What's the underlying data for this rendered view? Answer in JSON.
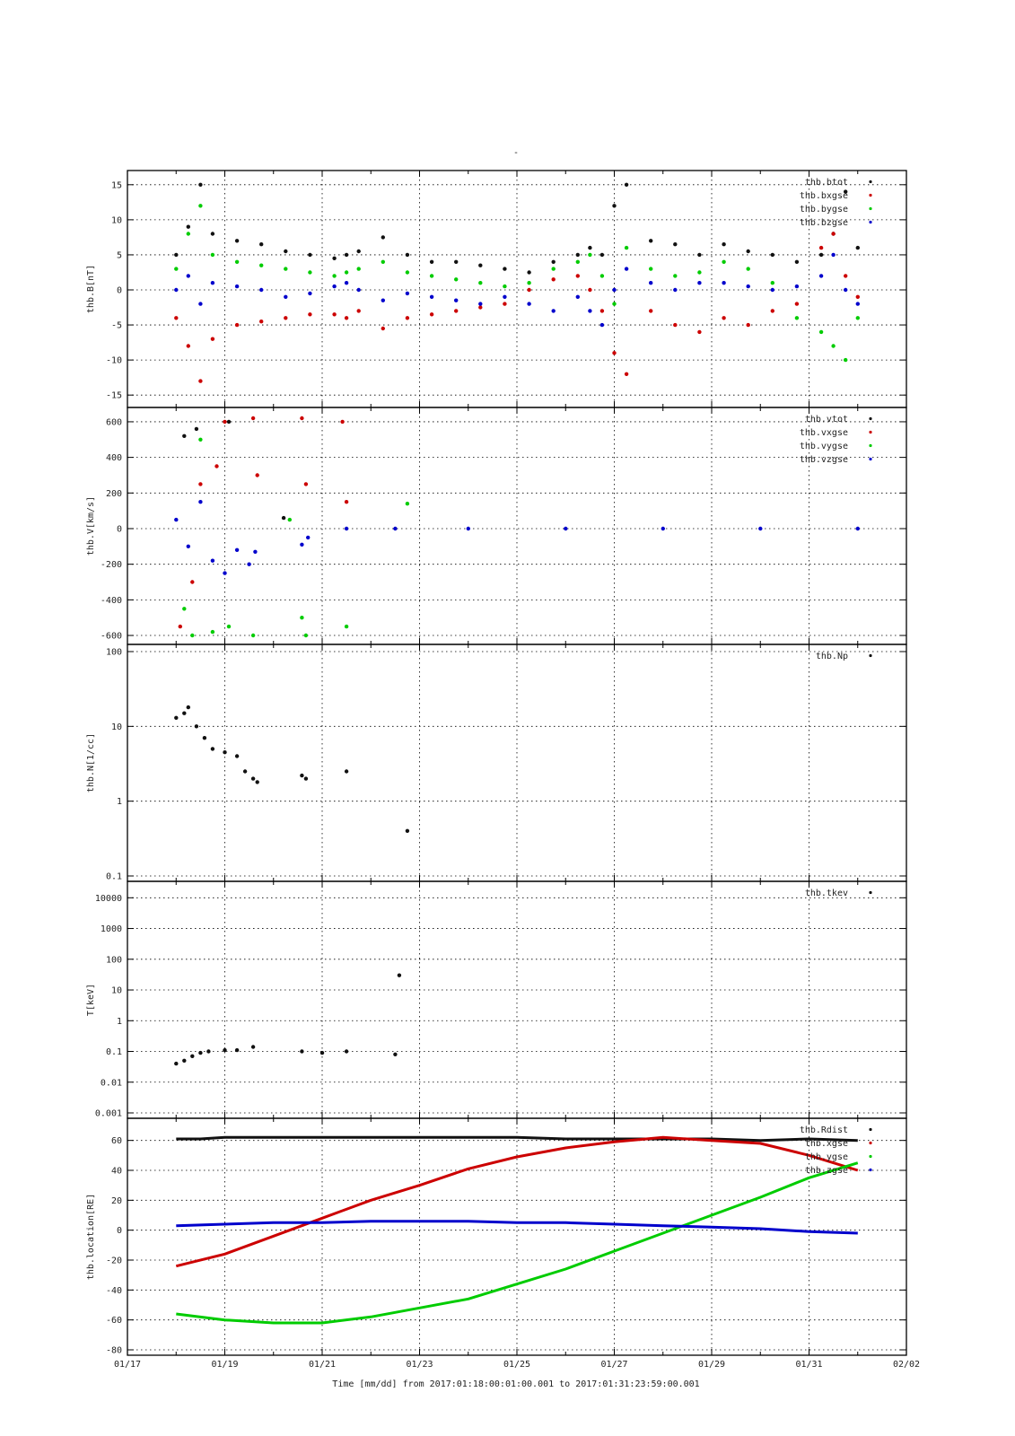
{
  "figure": {
    "title": "-",
    "xlabel": "Time [mm/dd]  from 2017:01:18:00:01:00.001  to  2017:01:31:23:59:00.001"
  },
  "colors": {
    "black": "#111111",
    "red": "#cc0000",
    "green": "#00cc00",
    "blue": "#0000cc"
  },
  "chart_data": [
    {
      "type": "scatter",
      "ylabel": "thb.B[nT]",
      "x_range_days": [
        "2017-01-17",
        "2017-02-02"
      ],
      "x_tick_labels": [
        "01/17",
        "01/19",
        "01/21",
        "01/23",
        "01/25",
        "01/27",
        "01/29",
        "01/31",
        "02/02"
      ],
      "ylim": [
        -16,
        16
      ],
      "y_ticks": [
        -15,
        -10,
        -5,
        0,
        5,
        10,
        15
      ],
      "y_tick_labels": [
        "-15",
        "-10",
        "-5",
        "0",
        "5",
        "10",
        "15"
      ],
      "grid": true,
      "legend_position": "top-right",
      "series": [
        {
          "name": "thb.btot",
          "color": "black",
          "x": [
            "2017-01-18 00:00",
            "2017-01-18 06:00",
            "2017-01-18 12:00",
            "2017-01-18 18:00",
            "2017-01-19 06:00",
            "2017-01-19 18:00",
            "2017-01-20 06:00",
            "2017-01-20 18:00",
            "2017-01-21 06:00",
            "2017-01-21 12:00",
            "2017-01-21 18:00",
            "2017-01-22 06:00",
            "2017-01-22 18:00",
            "2017-01-23 06:00",
            "2017-01-23 18:00",
            "2017-01-24 06:00",
            "2017-01-24 18:00",
            "2017-01-25 06:00",
            "2017-01-25 18:00",
            "2017-01-26 06:00",
            "2017-01-26 12:00",
            "2017-01-26 18:00",
            "2017-01-27 00:00",
            "2017-01-27 06:00",
            "2017-01-27 18:00",
            "2017-01-28 06:00",
            "2017-01-28 18:00",
            "2017-01-29 06:00",
            "2017-01-29 18:00",
            "2017-01-30 06:00",
            "2017-01-30 18:00",
            "2017-01-31 06:00",
            "2017-01-31 12:00",
            "2017-01-31 18:00",
            "2017-02-01 00:00"
          ],
          "y": [
            5,
            9,
            15,
            8,
            7,
            6.5,
            5.5,
            5,
            4.5,
            5,
            5.5,
            7.5,
            5,
            4,
            4,
            3.5,
            3,
            2.5,
            4,
            5,
            6,
            5,
            12,
            15,
            7,
            6.5,
            5,
            6.5,
            5.5,
            5,
            4,
            5,
            8,
            14,
            6
          ]
        },
        {
          "name": "thb.bxgse",
          "color": "red",
          "x": [
            "2017-01-18 00:00",
            "2017-01-18 06:00",
            "2017-01-18 12:00",
            "2017-01-18 18:00",
            "2017-01-19 06:00",
            "2017-01-19 18:00",
            "2017-01-20 06:00",
            "2017-01-20 18:00",
            "2017-01-21 06:00",
            "2017-01-21 12:00",
            "2017-01-21 18:00",
            "2017-01-22 06:00",
            "2017-01-22 18:00",
            "2017-01-23 06:00",
            "2017-01-23 18:00",
            "2017-01-24 06:00",
            "2017-01-24 18:00",
            "2017-01-25 06:00",
            "2017-01-25 18:00",
            "2017-01-26 06:00",
            "2017-01-26 12:00",
            "2017-01-26 18:00",
            "2017-01-27 00:00",
            "2017-01-27 06:00",
            "2017-01-27 18:00",
            "2017-01-28 06:00",
            "2017-01-28 18:00",
            "2017-01-29 06:00",
            "2017-01-29 18:00",
            "2017-01-30 06:00",
            "2017-01-30 18:00",
            "2017-01-31 06:00",
            "2017-01-31 12:00",
            "2017-01-31 18:00",
            "2017-02-01 00:00"
          ],
          "y": [
            -4,
            -8,
            -13,
            -7,
            -5,
            -4.5,
            -4,
            -3.5,
            -3.5,
            -4,
            -3,
            -5.5,
            -4,
            -3.5,
            -3,
            -2.5,
            -2,
            0,
            1.5,
            2,
            0,
            -3,
            -9,
            -12,
            -3,
            -5,
            -6,
            -4,
            -5,
            -3,
            -2,
            6,
            8,
            2,
            -1
          ]
        },
        {
          "name": "thb.bygse",
          "color": "green",
          "x": [
            "2017-01-18 00:00",
            "2017-01-18 06:00",
            "2017-01-18 12:00",
            "2017-01-18 18:00",
            "2017-01-19 06:00",
            "2017-01-19 18:00",
            "2017-01-20 06:00",
            "2017-01-20 18:00",
            "2017-01-21 06:00",
            "2017-01-21 12:00",
            "2017-01-21 18:00",
            "2017-01-22 06:00",
            "2017-01-22 18:00",
            "2017-01-23 06:00",
            "2017-01-23 18:00",
            "2017-01-24 06:00",
            "2017-01-24 18:00",
            "2017-01-25 06:00",
            "2017-01-25 18:00",
            "2017-01-26 06:00",
            "2017-01-26 12:00",
            "2017-01-26 18:00",
            "2017-01-27 00:00",
            "2017-01-27 06:00",
            "2017-01-27 18:00",
            "2017-01-28 06:00",
            "2017-01-28 18:00",
            "2017-01-29 06:00",
            "2017-01-29 18:00",
            "2017-01-30 06:00",
            "2017-01-30 18:00",
            "2017-01-31 06:00",
            "2017-01-31 12:00",
            "2017-01-31 18:00",
            "2017-02-01 00:00"
          ],
          "y": [
            3,
            8,
            12,
            5,
            4,
            3.5,
            3,
            2.5,
            2,
            2.5,
            3,
            4,
            2.5,
            2,
            1.5,
            1,
            0.5,
            1,
            3,
            4,
            5,
            2,
            -2,
            6,
            3,
            2,
            2.5,
            4,
            3,
            1,
            -4,
            -6,
            -8,
            -10,
            -4
          ]
        },
        {
          "name": "thb.bzgse",
          "color": "blue",
          "x": [
            "2017-01-18 00:00",
            "2017-01-18 06:00",
            "2017-01-18 12:00",
            "2017-01-18 18:00",
            "2017-01-19 06:00",
            "2017-01-19 18:00",
            "2017-01-20 06:00",
            "2017-01-20 18:00",
            "2017-01-21 06:00",
            "2017-01-21 12:00",
            "2017-01-21 18:00",
            "2017-01-22 06:00",
            "2017-01-22 18:00",
            "2017-01-23 06:00",
            "2017-01-23 18:00",
            "2017-01-24 06:00",
            "2017-01-24 18:00",
            "2017-01-25 06:00",
            "2017-01-25 18:00",
            "2017-01-26 06:00",
            "2017-01-26 12:00",
            "2017-01-26 18:00",
            "2017-01-27 00:00",
            "2017-01-27 06:00",
            "2017-01-27 18:00",
            "2017-01-28 06:00",
            "2017-01-28 18:00",
            "2017-01-29 06:00",
            "2017-01-29 18:00",
            "2017-01-30 06:00",
            "2017-01-30 18:00",
            "2017-01-31 06:00",
            "2017-01-31 12:00",
            "2017-01-31 18:00",
            "2017-02-01 00:00"
          ],
          "y": [
            0,
            2,
            -2,
            1,
            0.5,
            0,
            -1,
            -0.5,
            0.5,
            1,
            0,
            -1.5,
            -0.5,
            -1,
            -1.5,
            -2,
            -1,
            -2,
            -3,
            -1,
            -3,
            -5,
            0,
            3,
            1,
            0,
            1,
            1,
            0.5,
            0,
            0.5,
            2,
            5,
            0,
            -2
          ]
        }
      ]
    },
    {
      "type": "scatter",
      "ylabel": "thb.V[km/s]",
      "x_range_days": [
        "2017-01-17",
        "2017-02-02"
      ],
      "ylim": [
        -620,
        640
      ],
      "y_ticks": [
        -600,
        -400,
        -200,
        0,
        200,
        400,
        600
      ],
      "y_tick_labels": [
        "-600",
        "-400",
        "-200",
        "0",
        "200",
        "400",
        "600"
      ],
      "grid": true,
      "legend_position": "top-right",
      "series": [
        {
          "name": "thb.vtot",
          "color": "black",
          "x": [
            "2017-01-18 04:00",
            "2017-01-18 10:00",
            "2017-01-19 02:00",
            "2017-01-20 05:00"
          ],
          "y": [
            520,
            560,
            600,
            60
          ]
        },
        {
          "name": "thb.vxgse",
          "color": "red",
          "x": [
            "2017-01-18 02:00",
            "2017-01-18 08:00",
            "2017-01-18 12:00",
            "2017-01-18 20:00",
            "2017-01-19 00:00",
            "2017-01-19 14:00",
            "2017-01-19 16:00",
            "2017-01-20 14:00",
            "2017-01-20 16:00",
            "2017-01-21 10:00",
            "2017-01-21 12:00"
          ],
          "y": [
            -550,
            -300,
            250,
            350,
            600,
            620,
            300,
            620,
            250,
            600,
            150
          ]
        },
        {
          "name": "thb.vygse",
          "color": "green",
          "x": [
            "2017-01-18 04:00",
            "2017-01-18 08:00",
            "2017-01-18 12:00",
            "2017-01-18 18:00",
            "2017-01-19 02:00",
            "2017-01-19 14:00",
            "2017-01-20 08:00",
            "2017-01-20 14:00",
            "2017-01-20 16:00",
            "2017-01-21 12:00",
            "2017-01-22 18:00"
          ],
          "y": [
            -450,
            -600,
            500,
            -580,
            -550,
            -600,
            50,
            -500,
            -600,
            -550,
            140
          ]
        },
        {
          "name": "thb.vzgse",
          "color": "blue",
          "x": [
            "2017-01-18 00:00",
            "2017-01-18 06:00",
            "2017-01-18 12:00",
            "2017-01-18 18:00",
            "2017-01-19 00:00",
            "2017-01-19 06:00",
            "2017-01-19 12:00",
            "2017-01-19 15:00",
            "2017-01-20 14:00",
            "2017-01-20 17:00",
            "2017-01-21 12:00",
            "2017-01-22 12:00",
            "2017-01-24 00:00",
            "2017-01-26 00:00",
            "2017-01-28 00:00",
            "2017-01-30 00:00",
            "2017-02-01 00:00"
          ],
          "y": [
            50,
            -100,
            150,
            -180,
            -250,
            -120,
            -200,
            -130,
            -90,
            -50,
            0,
            0,
            0,
            0,
            0,
            0,
            0
          ]
        }
      ]
    },
    {
      "type": "scatter",
      "ylabel": "thb.N[1/cc]",
      "yscale": "log",
      "x_range_days": [
        "2017-01-17",
        "2017-02-02"
      ],
      "ylim": [
        0.1,
        100
      ],
      "y_ticks": [
        0.1,
        1,
        10,
        100
      ],
      "y_tick_labels": [
        "0.1",
        "1",
        "10",
        "100"
      ],
      "grid": true,
      "legend_position": "top-right",
      "series": [
        {
          "name": "thb.Np",
          "color": "black",
          "x": [
            "2017-01-18 00:00",
            "2017-01-18 04:00",
            "2017-01-18 06:00",
            "2017-01-18 10:00",
            "2017-01-18 14:00",
            "2017-01-18 18:00",
            "2017-01-19 00:00",
            "2017-01-19 06:00",
            "2017-01-19 10:00",
            "2017-01-19 14:00",
            "2017-01-19 16:00",
            "2017-01-20 14:00",
            "2017-01-20 16:00",
            "2017-01-21 12:00",
            "2017-01-22 18:00"
          ],
          "y": [
            13,
            15,
            18,
            10,
            7,
            5,
            4.5,
            4,
            2.5,
            2,
            1.8,
            2.2,
            2,
            2.5,
            0.4
          ]
        }
      ]
    },
    {
      "type": "scatter",
      "ylabel": "T[keV]",
      "yscale": "log",
      "x_range_days": [
        "2017-01-17",
        "2017-02-02"
      ],
      "ylim": [
        0.001,
        20000
      ],
      "y_ticks": [
        0.001,
        0.01,
        0.1,
        1,
        10,
        100,
        1000,
        10000
      ],
      "y_tick_labels": [
        "0.001",
        "0.01",
        "0.1",
        "1",
        "10",
        "100",
        "1000",
        "10000"
      ],
      "grid": true,
      "legend_position": "top-right",
      "series": [
        {
          "name": "thb.tkev",
          "color": "black",
          "x": [
            "2017-01-18 00:00",
            "2017-01-18 04:00",
            "2017-01-18 08:00",
            "2017-01-18 12:00",
            "2017-01-18 16:00",
            "2017-01-19 00:00",
            "2017-01-19 06:00",
            "2017-01-19 14:00",
            "2017-01-20 14:00",
            "2017-01-21 00:00",
            "2017-01-21 12:00",
            "2017-01-22 12:00",
            "2017-01-22 14:00"
          ],
          "y": [
            0.04,
            0.05,
            0.07,
            0.09,
            0.1,
            0.11,
            0.11,
            0.14,
            0.1,
            0.09,
            0.1,
            0.08,
            30
          ]
        }
      ]
    },
    {
      "type": "line",
      "ylabel": "thb.location[RE]",
      "x_range_days": [
        "2017-01-17",
        "2017-02-02"
      ],
      "ylim": [
        -80,
        70
      ],
      "y_ticks": [
        -80,
        -60,
        -40,
        -20,
        0,
        20,
        40,
        60
      ],
      "y_tick_labels": [
        "-80",
        "-60",
        "-40",
        "-20",
        "0",
        "20",
        "40",
        "60"
      ],
      "grid": true,
      "legend_position": "top-right",
      "series": [
        {
          "name": "thb.Rdist",
          "color": "black",
          "x": [
            "2017-01-18 00:00",
            "2017-01-18 12:00",
            "2017-01-19 00:00",
            "2017-01-20 00:00",
            "2017-01-21 00:00",
            "2017-01-22 00:00",
            "2017-01-23 00:00",
            "2017-01-24 00:00",
            "2017-01-25 00:00",
            "2017-01-26 00:00",
            "2017-01-27 00:00",
            "2017-01-28 00:00",
            "2017-01-29 00:00",
            "2017-01-30 00:00",
            "2017-01-31 00:00",
            "2017-02-01 00:00"
          ],
          "y": [
            61,
            61,
            62,
            62,
            62,
            62,
            62,
            62,
            62,
            61,
            61,
            61,
            61,
            60,
            61,
            60
          ]
        },
        {
          "name": "thb.xgse",
          "color": "red",
          "x": [
            "2017-01-18 00:00",
            "2017-01-19 00:00",
            "2017-01-20 00:00",
            "2017-01-21 00:00",
            "2017-01-22 00:00",
            "2017-01-23 00:00",
            "2017-01-24 00:00",
            "2017-01-25 00:00",
            "2017-01-26 00:00",
            "2017-01-27 00:00",
            "2017-01-28 00:00",
            "2017-01-29 00:00",
            "2017-01-30 00:00",
            "2017-01-31 00:00",
            "2017-02-01 00:00"
          ],
          "y": [
            -24,
            -16,
            -4,
            8,
            20,
            30,
            41,
            49,
            55,
            59,
            62,
            60,
            58,
            50,
            40
          ]
        },
        {
          "name": "thb.ygse",
          "color": "green",
          "x": [
            "2017-01-18 00:00",
            "2017-01-19 00:00",
            "2017-01-20 00:00",
            "2017-01-21 00:00",
            "2017-01-22 00:00",
            "2017-01-23 00:00",
            "2017-01-24 00:00",
            "2017-01-25 00:00",
            "2017-01-26 00:00",
            "2017-01-27 00:00",
            "2017-01-28 00:00",
            "2017-01-29 00:00",
            "2017-01-30 00:00",
            "2017-01-31 00:00",
            "2017-02-01 00:00"
          ],
          "y": [
            -56,
            -60,
            -62,
            -62,
            -58,
            -52,
            -46,
            -36,
            -26,
            -14,
            -2,
            10,
            22,
            35,
            45
          ]
        },
        {
          "name": "thb.zgse",
          "color": "blue",
          "x": [
            "2017-01-18 00:00",
            "2017-01-19 00:00",
            "2017-01-20 00:00",
            "2017-01-21 00:00",
            "2017-01-22 00:00",
            "2017-01-23 00:00",
            "2017-01-24 00:00",
            "2017-01-25 00:00",
            "2017-01-26 00:00",
            "2017-01-27 00:00",
            "2017-01-28 00:00",
            "2017-01-29 00:00",
            "2017-01-30 00:00",
            "2017-01-31 00:00",
            "2017-02-01 00:00"
          ],
          "y": [
            3,
            4,
            5,
            5,
            6,
            6,
            6,
            5,
            5,
            4,
            3,
            2,
            1,
            -1,
            -2
          ]
        }
      ]
    }
  ]
}
